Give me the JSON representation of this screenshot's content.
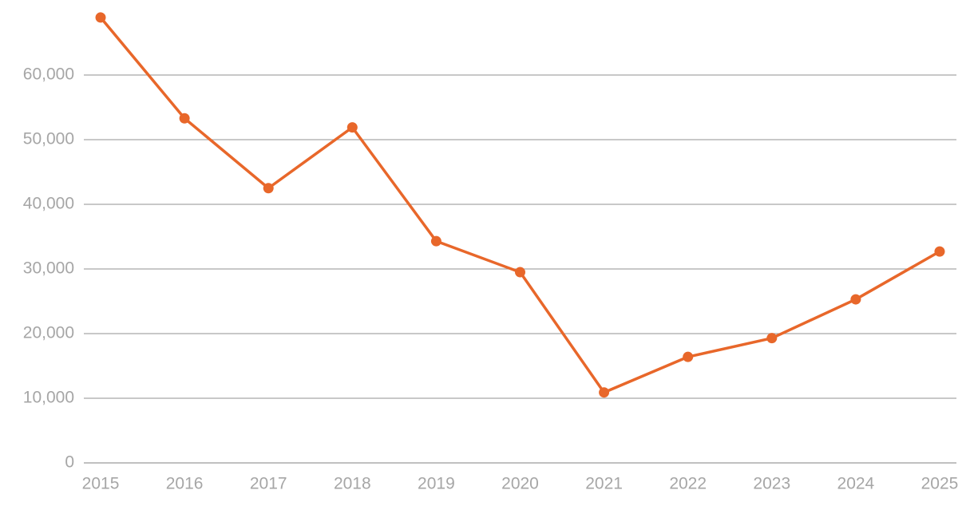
{
  "chart_data": {
    "type": "line",
    "x": [
      2015,
      2016,
      2017,
      2018,
      2019,
      2020,
      2021,
      2022,
      2023,
      2024,
      2025
    ],
    "series": [
      {
        "color": "#e8672a",
        "values": [
          68900,
          53300,
          42500,
          51900,
          34300,
          29500,
          10900,
          16400,
          19300,
          25300,
          32700
        ]
      }
    ],
    "xlim": [
      2014.8,
      2025.2
    ],
    "xticks": [
      2015,
      2016,
      2017,
      2018,
      2019,
      2020,
      2021,
      2022,
      2023,
      2024,
      2025
    ],
    "ylim": [
      0,
      70000
    ],
    "yticks": [
      0,
      {
        "value": 10000,
        "label": "10,000"
      },
      {
        "value": 20000,
        "label": "20,000"
      },
      {
        "value": 30000,
        "label": "30,000"
      },
      {
        "value": 40000,
        "label": "40,000"
      },
      {
        "value": 50000,
        "label": "50,000"
      },
      {
        "value": 60000,
        "label": "60,000"
      }
    ],
    "grid": true
  }
}
